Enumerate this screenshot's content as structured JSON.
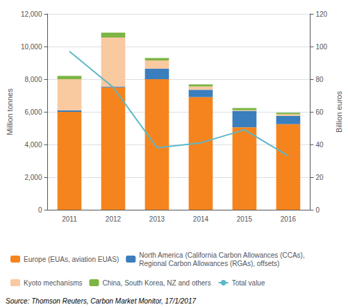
{
  "chart_data": {
    "type": "bar",
    "categories": [
      "2011",
      "2012",
      "2013",
      "2014",
      "2015",
      "2016"
    ],
    "series": [
      {
        "name": "Europe (EUAs, aviation EUAS)",
        "color": "#F5841E",
        "values": [
          6000,
          7500,
          8000,
          6900,
          5050,
          5250
        ]
      },
      {
        "name": "North America (California Carbon Allowances (CCAs),\nRegional Carbon Allowances (RGAs), offsets)",
        "color": "#3A7EBD",
        "values": [
          100,
          50,
          650,
          450,
          1000,
          500
        ]
      },
      {
        "name": "Kyoto mechanisms",
        "color": "#F9C9A0",
        "values": [
          1900,
          3000,
          500,
          200,
          50,
          100
        ]
      },
      {
        "name": "China, South Korea, NZ and others",
        "color": "#7DB544",
        "values": [
          200,
          300,
          150,
          130,
          130,
          100
        ]
      },
      {
        "name": "Total value",
        "type": "line",
        "axis": "y2",
        "color": "#5BB8C8",
        "values": [
          97,
          75,
          38,
          41,
          49,
          33
        ]
      }
    ],
    "stacked": true,
    "ylabel": "Million tonnes",
    "y2label": "Billion euros",
    "ylim": [
      0,
      12000
    ],
    "yticks": [
      0,
      {
        "value": 2000,
        "label": "2,000"
      },
      {
        "value": 4000,
        "label": "4,000"
      },
      {
        "value": 6000,
        "label": "6,000"
      },
      {
        "value": 8000,
        "label": "8,000"
      },
      {
        "value": 10000,
        "label": "10,000"
      },
      {
        "value": 12000,
        "label": "12,000"
      }
    ],
    "y2lim": [
      0,
      120
    ],
    "y2ticks": [
      0,
      20,
      40,
      60,
      80,
      100,
      120
    ],
    "grid": true,
    "legend": "bottom",
    "annotation": "Source: Thomson Reuters, Carbon Market Monitor, 17/1/2017"
  }
}
